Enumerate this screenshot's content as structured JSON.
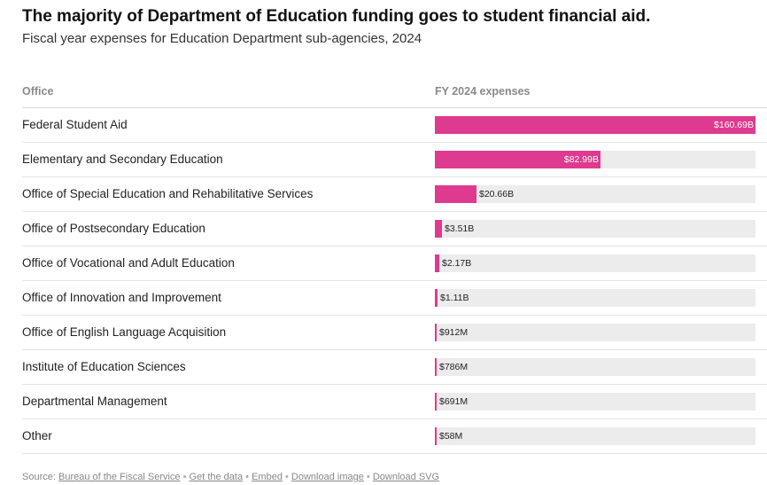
{
  "title": "The majority of Department of Education funding goes to student financial aid.",
  "subtitle": "Fiscal year expenses for Education Department sub-agencies, 2024",
  "columns": {
    "office": "Office",
    "value": "FY 2024 expenses"
  },
  "colors": {
    "bar": "#de3a8f",
    "track": "#ececec"
  },
  "chart_data": {
    "type": "bar",
    "orientation": "horizontal",
    "title": "The majority of Department of Education funding goes to student financial aid.",
    "subtitle": "Fiscal year expenses for Education Department sub-agencies, 2024",
    "categories": [
      "Federal Student Aid",
      "Elementary and Secondary Education",
      "Office of Special Education and Rehabilitative Services",
      "Office of Postsecondary Education",
      "Office of Vocational and Adult Education",
      "Office of Innovation and Improvement",
      "Office of English Language Acquisition",
      "Institute of Education Sciences",
      "Departmental Management",
      "Other"
    ],
    "values": [
      160.69,
      82.99,
      20.66,
      3.51,
      2.17,
      1.11,
      0.912,
      0.786,
      0.691,
      0.058
    ],
    "value_labels": [
      "$160.69B",
      "$82.99B",
      "$20.66B",
      "$3.51B",
      "$2.17B",
      "$1.11B",
      "$912M",
      "$786M",
      "$691M",
      "$58M"
    ],
    "xlim": [
      0,
      160.69
    ]
  },
  "footer": {
    "source_prefix": "Source:",
    "links": [
      "Bureau of the Fiscal Service",
      "Get the data",
      "Embed",
      "Download image",
      "Download SVG"
    ],
    "separator": "•"
  }
}
